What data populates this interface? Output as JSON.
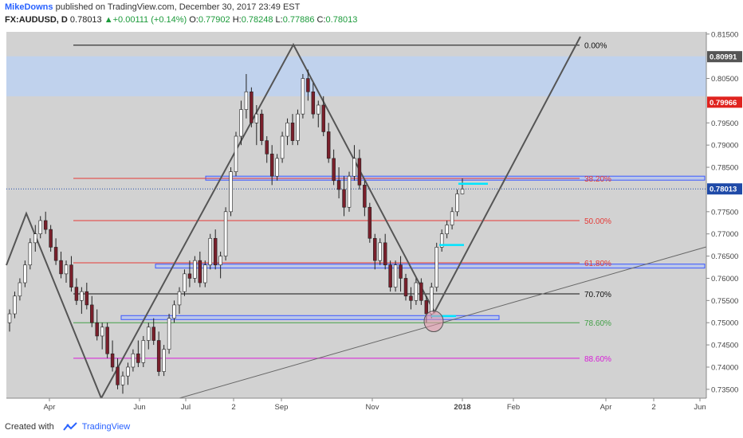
{
  "header": {
    "author": "MikeDowns",
    "published_text": "published on TradingView.com, December 30, 2017 23:49 EST",
    "symbol": "FX:AUDUSD, D",
    "last": "0.78013",
    "change": "+0.00111 (+0.14%)",
    "o_label": "O:",
    "o_value": "0.77902",
    "h_label": "H:",
    "h_value": "0.78248",
    "l_label": "L:",
    "l_value": "0.77886",
    "c_label": "C:",
    "c_value": "0.78013"
  },
  "footer": {
    "created_with": "Created with",
    "brand": "TradingView"
  },
  "colors": {
    "plot_bg": "#d2d2d2",
    "up_candle": "#ffffff",
    "down_candle": "#7a1f2b",
    "fib_red": "#e53935",
    "fib_green": "#43a047",
    "fib_magenta": "#d81bd8",
    "zone_blue": "#3d5afe",
    "cyan": "#00e5ff",
    "price_badge_red": "#e0231f",
    "price_badge_blue": "#1f4aa8"
  },
  "chart_data": {
    "type": "candlestick",
    "symbol": "FX:AUDUSD",
    "interval": "D",
    "ylim": [
      0.733,
      0.8155
    ],
    "x_tick_labels": [
      "Apr",
      "Jun",
      "Jul",
      "2",
      "Sep",
      "Nov",
      "2018",
      "Feb",
      "Apr",
      "2",
      "Jun"
    ],
    "y_tick_labels": [
      "0.81500",
      "0.80500",
      "0.79500",
      "0.79000",
      "0.78500",
      "0.77500",
      "0.77000",
      "0.76500",
      "0.76000",
      "0.75500",
      "0.75000",
      "0.74500",
      "0.74000",
      "0.73500"
    ],
    "y_tick_values": [
      0.815,
      0.805,
      0.795,
      0.79,
      0.785,
      0.775,
      0.77,
      0.765,
      0.76,
      0.755,
      0.75,
      0.745,
      0.74,
      0.735
    ],
    "price_badges": [
      {
        "label": "0.80991",
        "value": 0.80991,
        "color": "#555555"
      },
      {
        "label": "0.79966",
        "value": 0.79966,
        "color": "#e0231f"
      },
      {
        "label": "0.78013",
        "value": 0.78013,
        "color": "#1f4aa8"
      }
    ],
    "fib_levels": [
      {
        "label": "0.00%",
        "value": 0.8125,
        "color": "#111111"
      },
      {
        "label": "38.20%",
        "value": 0.7825,
        "color": "#e53935"
      },
      {
        "label": "50.00%",
        "value": 0.773,
        "color": "#e53935"
      },
      {
        "label": "61.80%",
        "value": 0.7635,
        "color": "#e53935"
      },
      {
        "label": "70.70%",
        "value": 0.7565,
        "color": "#111111"
      },
      {
        "label": "78.60%",
        "value": 0.75,
        "color": "#43a047"
      },
      {
        "label": "88.60%",
        "value": 0.742,
        "color": "#d81bd8"
      }
    ],
    "zones": [
      {
        "name": "supply-zone",
        "from": 0.801,
        "to": 0.81
      },
      {
        "name": "resistance-zone",
        "from": 0.7822,
        "to": 0.783
      },
      {
        "name": "support-zone-mid",
        "from": 0.7623,
        "to": 0.7632
      },
      {
        "name": "support-zone-low",
        "from": 0.7508,
        "to": 0.7516
      }
    ],
    "candles": [
      [
        0.75,
        0.753,
        0.748,
        0.752
      ],
      [
        0.752,
        0.757,
        0.751,
        0.756
      ],
      [
        0.756,
        0.76,
        0.755,
        0.759
      ],
      [
        0.759,
        0.764,
        0.758,
        0.763
      ],
      [
        0.763,
        0.769,
        0.762,
        0.768
      ],
      [
        0.768,
        0.772,
        0.766,
        0.77
      ],
      [
        0.77,
        0.774,
        0.769,
        0.773
      ],
      [
        0.773,
        0.775,
        0.77,
        0.771
      ],
      [
        0.771,
        0.772,
        0.766,
        0.767
      ],
      [
        0.767,
        0.769,
        0.763,
        0.764
      ],
      [
        0.764,
        0.766,
        0.76,
        0.761
      ],
      [
        0.761,
        0.764,
        0.759,
        0.763
      ],
      [
        0.763,
        0.765,
        0.757,
        0.758
      ],
      [
        0.758,
        0.76,
        0.754,
        0.755
      ],
      [
        0.755,
        0.758,
        0.752,
        0.757
      ],
      [
        0.757,
        0.759,
        0.753,
        0.754
      ],
      [
        0.754,
        0.756,
        0.749,
        0.75
      ],
      [
        0.75,
        0.753,
        0.746,
        0.747
      ],
      [
        0.747,
        0.75,
        0.744,
        0.749
      ],
      [
        0.749,
        0.75,
        0.742,
        0.743
      ],
      [
        0.743,
        0.746,
        0.739,
        0.74
      ],
      [
        0.74,
        0.742,
        0.735,
        0.736
      ],
      [
        0.736,
        0.739,
        0.734,
        0.738
      ],
      [
        0.738,
        0.741,
        0.736,
        0.74
      ],
      [
        0.74,
        0.744,
        0.739,
        0.743
      ],
      [
        0.743,
        0.746,
        0.74,
        0.741
      ],
      [
        0.741,
        0.747,
        0.74,
        0.746
      ],
      [
        0.746,
        0.75,
        0.744,
        0.749
      ],
      [
        0.749,
        0.751,
        0.745,
        0.746
      ],
      [
        0.746,
        0.748,
        0.738,
        0.739
      ],
      [
        0.739,
        0.745,
        0.738,
        0.744
      ],
      [
        0.744,
        0.752,
        0.743,
        0.751
      ],
      [
        0.751,
        0.755,
        0.75,
        0.754
      ],
      [
        0.754,
        0.758,
        0.752,
        0.757
      ],
      [
        0.757,
        0.762,
        0.756,
        0.761
      ],
      [
        0.761,
        0.764,
        0.758,
        0.76
      ],
      [
        0.76,
        0.765,
        0.759,
        0.764
      ],
      [
        0.764,
        0.766,
        0.758,
        0.759
      ],
      [
        0.759,
        0.764,
        0.758,
        0.763
      ],
      [
        0.763,
        0.77,
        0.762,
        0.769
      ],
      [
        0.769,
        0.771,
        0.762,
        0.763
      ],
      [
        0.763,
        0.766,
        0.76,
        0.765
      ],
      [
        0.765,
        0.776,
        0.764,
        0.775
      ],
      [
        0.775,
        0.785,
        0.774,
        0.784
      ],
      [
        0.784,
        0.793,
        0.783,
        0.792
      ],
      [
        0.792,
        0.8,
        0.79,
        0.798
      ],
      [
        0.798,
        0.806,
        0.796,
        0.802
      ],
      [
        0.802,
        0.803,
        0.794,
        0.795
      ],
      [
        0.795,
        0.799,
        0.79,
        0.797
      ],
      [
        0.797,
        0.798,
        0.79,
        0.791
      ],
      [
        0.791,
        0.792,
        0.786,
        0.788
      ],
      [
        0.788,
        0.79,
        0.781,
        0.783
      ],
      [
        0.783,
        0.788,
        0.782,
        0.787
      ],
      [
        0.787,
        0.793,
        0.786,
        0.792
      ],
      [
        0.792,
        0.796,
        0.79,
        0.795
      ],
      [
        0.795,
        0.797,
        0.79,
        0.791
      ],
      [
        0.791,
        0.798,
        0.79,
        0.797
      ],
      [
        0.797,
        0.806,
        0.796,
        0.805
      ],
      [
        0.805,
        0.807,
        0.8,
        0.802
      ],
      [
        0.802,
        0.804,
        0.796,
        0.797
      ],
      [
        0.797,
        0.8,
        0.794,
        0.799
      ],
      [
        0.799,
        0.801,
        0.792,
        0.793
      ],
      [
        0.793,
        0.795,
        0.786,
        0.787
      ],
      [
        0.787,
        0.789,
        0.781,
        0.782
      ],
      [
        0.782,
        0.785,
        0.778,
        0.78
      ],
      [
        0.78,
        0.783,
        0.774,
        0.776
      ],
      [
        0.776,
        0.784,
        0.775,
        0.783
      ],
      [
        0.783,
        0.79,
        0.782,
        0.787
      ],
      [
        0.787,
        0.789,
        0.78,
        0.781
      ],
      [
        0.781,
        0.782,
        0.774,
        0.776
      ],
      [
        0.776,
        0.777,
        0.768,
        0.769
      ],
      [
        0.769,
        0.77,
        0.762,
        0.764
      ],
      [
        0.764,
        0.769,
        0.763,
        0.768
      ],
      [
        0.768,
        0.77,
        0.762,
        0.763
      ],
      [
        0.763,
        0.764,
        0.757,
        0.758
      ],
      [
        0.758,
        0.764,
        0.757,
        0.763
      ],
      [
        0.763,
        0.765,
        0.757,
        0.76
      ],
      [
        0.76,
        0.761,
        0.755,
        0.756
      ],
      [
        0.756,
        0.758,
        0.753,
        0.755
      ],
      [
        0.755,
        0.76,
        0.754,
        0.759
      ],
      [
        0.759,
        0.76,
        0.754,
        0.755
      ],
      [
        0.755,
        0.756,
        0.75,
        0.752
      ],
      [
        0.752,
        0.759,
        0.751,
        0.758
      ],
      [
        0.758,
        0.768,
        0.757,
        0.767
      ],
      [
        0.767,
        0.771,
        0.766,
        0.77
      ],
      [
        0.77,
        0.773,
        0.769,
        0.772
      ],
      [
        0.772,
        0.776,
        0.771,
        0.775
      ],
      [
        0.775,
        0.78,
        0.774,
        0.779
      ],
      [
        0.779,
        0.7825,
        0.7789,
        0.7801
      ]
    ],
    "annotations": [
      "cyan-arrow-resistance",
      "cyan-arrow-mid",
      "cyan-arrow-low",
      "circle-low"
    ]
  }
}
